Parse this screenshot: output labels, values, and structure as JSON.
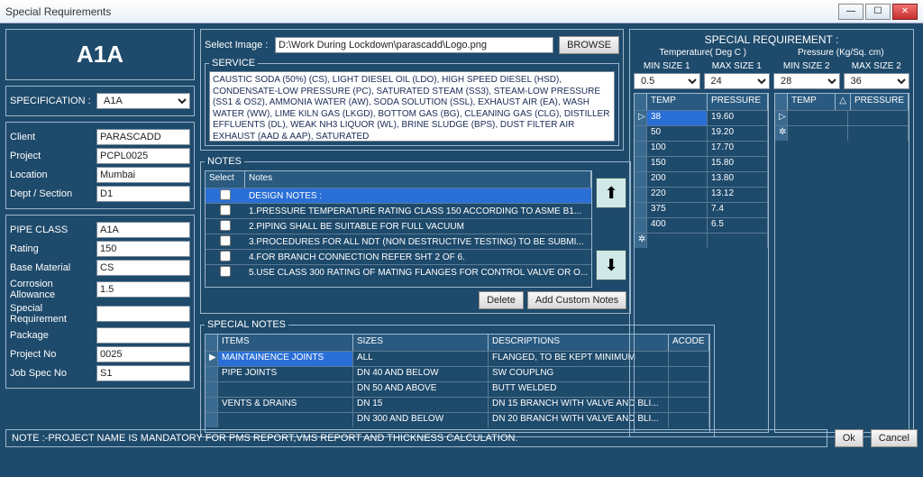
{
  "window": {
    "title": "Special Requirements"
  },
  "big_code": "A1A",
  "spec_select": {
    "label": "SPECIFICATION :",
    "value": "A1A"
  },
  "client_group": {
    "client": {
      "label": "Client",
      "value": "PARASCADD"
    },
    "project": {
      "label": "Project",
      "value": "PCPL0025"
    },
    "location": {
      "label": "Location",
      "value": "Mumbai"
    },
    "dept": {
      "label": "Dept / Section",
      "value": "D1"
    }
  },
  "class_group": {
    "pipe_class": {
      "label": "PIPE CLASS",
      "value": "A1A"
    },
    "rating": {
      "label": "Rating",
      "value": "150"
    },
    "base_material": {
      "label": "Base Material",
      "value": "CS"
    },
    "corrosion": {
      "label": "Corrosion Allowance",
      "value": "1.5"
    },
    "special_req": {
      "label": "Special Requirement",
      "value": ""
    },
    "package": {
      "label": "Package",
      "value": ""
    },
    "project_no": {
      "label": "Project No",
      "value": "0025"
    },
    "job_spec": {
      "label": "Job Spec No",
      "value": "S1"
    }
  },
  "image_row": {
    "label": "Select Image :",
    "path": "D:\\Work During Lockdown\\parascadd\\Logo.png",
    "browse": "BROWSE"
  },
  "service": {
    "legend": "SERVICE",
    "text": "CAUSTIC SODA (50%) (CS), LIGHT DIESEL OIL (LDO), HIGH SPEED DIESEL (HSD), CONDENSATE-LOW PRESSURE (PC),\nSATURATED STEAM (SS3), STEAM-LOW PRESSURE (SS1 & OS2), AMMONIA WATER (AW), SODA SOLUTION (SSL), EXHAUST AIR (EA),\nWASH WATER (WW), LIME KILN GAS (LKGD), BOTTOM GAS (BG), CLEANING GAS (CLG), DISTILLER EFFLUENTS (DL),\nWEAK NH3 LIQUOR (WL), BRINE SLUDGE (BPS), DUST FILTER AIR EXHAUST (AAD & AAP),  SATURATED"
  },
  "notes": {
    "legend": "NOTES",
    "cols": {
      "select": "Select",
      "notes": "Notes"
    },
    "rows": [
      {
        "sel": true,
        "text": "DESIGN NOTES :"
      },
      {
        "sel": false,
        "text": "1.PRESSURE TEMPERATURE RATING CLASS 150 ACCORDING TO ASME B1..."
      },
      {
        "sel": false,
        "text": "2.PIPING SHALL BE SUITABLE FOR FULL VACUUM"
      },
      {
        "sel": false,
        "text": "3.PROCEDURES FOR ALL NDT (NON DESTRUCTIVE TESTING) TO BE SUBMI..."
      },
      {
        "sel": false,
        "text": "4.FOR BRANCH CONNECTION REFER SHT 2 OF 6."
      },
      {
        "sel": false,
        "text": "5.USE CLASS 300 RATING OF MATING FLANGES FOR CONTROL VALVE OR O..."
      }
    ],
    "delete": "Delete",
    "add_custom": "Add Custom Notes"
  },
  "special_notes": {
    "legend": "SPECIAL NOTES",
    "cols": {
      "items": "ITEMS",
      "sizes": "SIZES",
      "desc": "DESCRIPTIONS",
      "acode": "ACODE"
    },
    "rows": [
      {
        "sel": true,
        "item": "MAINTAINENCE JOINTS",
        "size": "ALL",
        "desc": "FLANGED, TO BE KEPT MINIMUM",
        "acode": ""
      },
      {
        "sel": false,
        "item": "PIPE JOINTS",
        "size": "DN 40 AND BELOW",
        "desc": "SW COUPLNG",
        "acode": ""
      },
      {
        "sel": false,
        "item": "",
        "size": "DN 50 AND ABOVE",
        "desc": "BUTT WELDED",
        "acode": ""
      },
      {
        "sel": false,
        "item": "VENTS & DRAINS",
        "size": "DN 15",
        "desc": "DN 15 BRANCH WITH VALVE AND BLI...",
        "acode": ""
      },
      {
        "sel": false,
        "item": "",
        "size": "DN 300 AND BELOW",
        "desc": "DN 20 BRANCH WITH VALVE AND BLI...",
        "acode": ""
      }
    ]
  },
  "sr": {
    "title": "SPECIAL REQUIREMENT :",
    "sub1": "Temperature( Deg C )",
    "sub2": "Pressure (Kg/Sq. cm)",
    "min1": {
      "label": "MIN SIZE 1",
      "value": "0.5"
    },
    "max1": {
      "label": "MAX SIZE 1",
      "value": "24"
    },
    "min2": {
      "label": "MIN SIZE 2",
      "value": "28"
    },
    "max2": {
      "label": "MAX SIZE 2",
      "value": "36"
    },
    "gridcols": {
      "temp": "TEMP",
      "pressure": "PRESSURE"
    },
    "grid1": [
      {
        "temp": "38",
        "pressure": "19.60",
        "sel": true
      },
      {
        "temp": "50",
        "pressure": "19.20"
      },
      {
        "temp": "100",
        "pressure": "17.70"
      },
      {
        "temp": "150",
        "pressure": "15.80"
      },
      {
        "temp": "200",
        "pressure": "13.80"
      },
      {
        "temp": "220",
        "pressure": "13.12"
      },
      {
        "temp": "375",
        "pressure": "7.4"
      },
      {
        "temp": "400",
        "pressure": "6.5"
      }
    ],
    "grid2": []
  },
  "footer": {
    "note": "NOTE :-PROJECT NAME IS MANDATORY FOR PMS REPORT,VMS REPORT AND THICKNESS CALCULATION.",
    "ok": "Ok",
    "cancel": "Cancel"
  }
}
